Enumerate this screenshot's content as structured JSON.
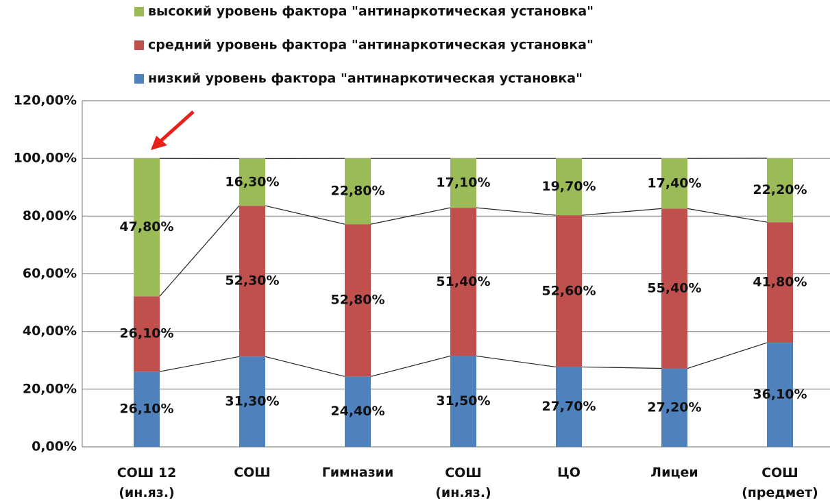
{
  "chart_data": {
    "type": "stacked_bar",
    "categories": [
      "СОШ 12 (ин.яз.)",
      "СОШ",
      "Гимназии",
      "СОШ (ин.яз.)",
      "ЦО",
      "Лицеи",
      "СОШ (предмет)"
    ],
    "series": [
      {
        "name": "низкий уровень фактора \"антинаркотическая установка\"",
        "color": "#4f81bd",
        "values": [
          26.1,
          31.3,
          24.4,
          31.5,
          27.7,
          27.2,
          36.1
        ],
        "value_labels": [
          "26,10%",
          "31,30%",
          "24,40%",
          "31,50%",
          "27,70%",
          "27,20%",
          "36,10%"
        ]
      },
      {
        "name": "средний уровень фактора \"антинаркотическая установка\"",
        "color": "#c0504d",
        "values": [
          26.1,
          52.3,
          52.8,
          51.4,
          52.6,
          55.4,
          41.8
        ],
        "value_labels": [
          "26,10%",
          "52,30%",
          "52,80%",
          "51,40%",
          "52,60%",
          "55,40%",
          "41,80%"
        ]
      },
      {
        "name": "высокий уровень фактора \"антинаркотическая установка\"",
        "color": "#9bbb59",
        "values": [
          47.8,
          16.3,
          22.8,
          17.1,
          19.7,
          17.4,
          22.2
        ],
        "value_labels": [
          "47,80%",
          "16,30%",
          "22,80%",
          "17,10%",
          "19,70%",
          "17,40%",
          "22,20%"
        ]
      }
    ],
    "ylim": [
      0,
      120
    ],
    "yticks": [
      {
        "value": 0,
        "label": "0,00%"
      },
      {
        "value": 20,
        "label": "20,00%"
      },
      {
        "value": 40,
        "label": "40,00%"
      },
      {
        "value": 60,
        "label": "60,00%"
      },
      {
        "value": 80,
        "label": "80,00%"
      },
      {
        "value": 100,
        "label": "100,00%"
      },
      {
        "value": 120,
        "label": "120,00%"
      }
    ],
    "grid": true
  }
}
